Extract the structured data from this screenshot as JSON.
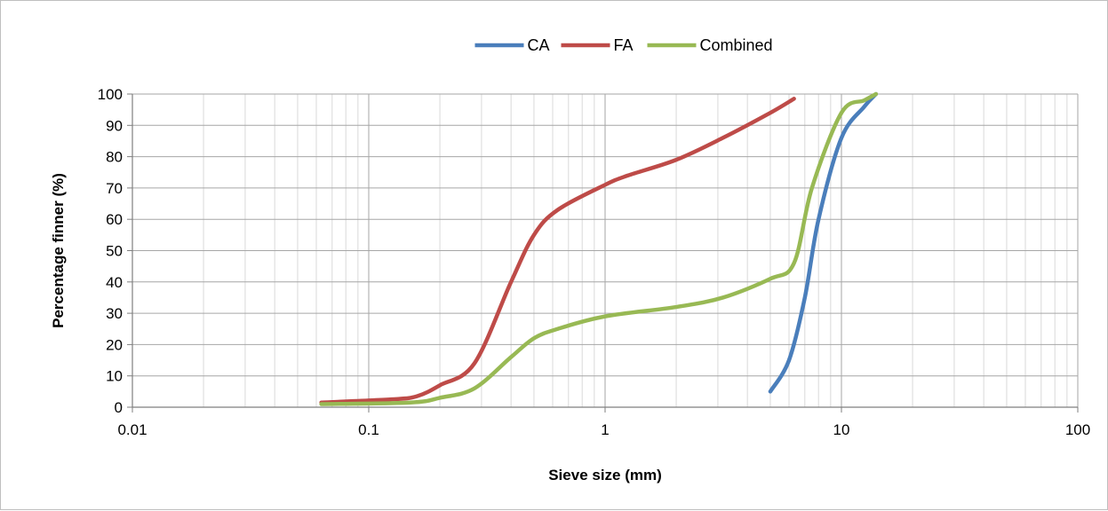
{
  "chart_data": {
    "type": "line",
    "title": "",
    "xlabel": "Sieve size (mm)",
    "ylabel": "Percentage finner (%)",
    "x_scale": "log",
    "xlim": [
      0.01,
      100
    ],
    "ylim": [
      0,
      100
    ],
    "x_ticks": [
      0.01,
      0.1,
      1,
      10,
      100
    ],
    "x_tick_labels": [
      "0.01",
      "0.1",
      "1",
      "10",
      "100"
    ],
    "y_ticks": [
      0,
      10,
      20,
      30,
      40,
      50,
      60,
      70,
      80,
      90,
      100
    ],
    "y_tick_labels": [
      "0",
      "10",
      "20",
      "30",
      "40",
      "50",
      "60",
      "70",
      "80",
      "90",
      "100"
    ],
    "grid": true,
    "legend_position": "top",
    "series": [
      {
        "name": "CA",
        "color": "#4a7ebb",
        "x": [
          5,
          6,
          7,
          8,
          10,
          12.5,
          14
        ],
        "y": [
          5,
          15,
          35,
          60,
          86,
          96,
          100
        ]
      },
      {
        "name": "FA",
        "color": "#be4b48",
        "x": [
          0.063,
          0.125,
          0.16,
          0.2,
          0.28,
          0.4,
          0.5,
          0.63,
          1,
          1.25,
          2,
          3.15,
          5,
          6.3
        ],
        "y": [
          1.5,
          2.5,
          3.5,
          7,
          14,
          40,
          55,
          63,
          71,
          74,
          79,
          86,
          94,
          98.5
        ]
      },
      {
        "name": "Combined",
        "color": "#98b954",
        "x": [
          0.063,
          0.15,
          0.2,
          0.28,
          0.4,
          0.5,
          0.63,
          1,
          2,
          3.15,
          5,
          6.3,
          7.5,
          10,
          12.5,
          14
        ],
        "y": [
          1,
          1.5,
          3,
          6,
          16,
          22,
          25,
          29,
          32,
          35,
          41,
          46,
          70,
          94,
          98,
          100
        ]
      }
    ]
  }
}
